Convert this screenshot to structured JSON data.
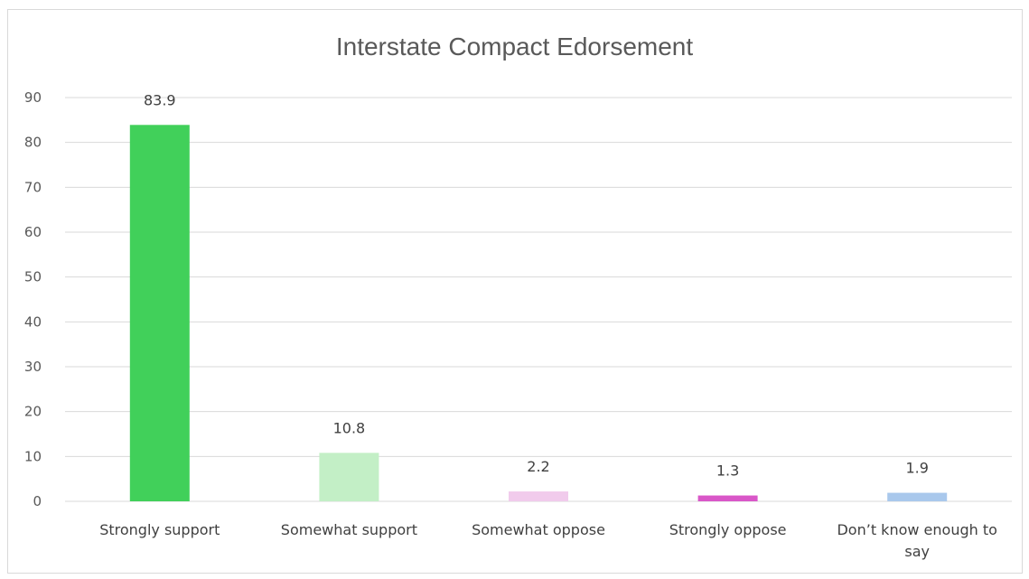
{
  "chart_data": {
    "type": "bar",
    "title": "Interstate Compact Edorsement",
    "xlabel": "",
    "ylabel": "",
    "ylim": [
      0,
      90
    ],
    "yticks": [
      0,
      10,
      20,
      30,
      40,
      50,
      60,
      70,
      80,
      90
    ],
    "grid": true,
    "legend": "none",
    "categories": [
      [
        "Strongly support"
      ],
      [
        "Somewhat support"
      ],
      [
        "Somewhat oppose"
      ],
      [
        "Strongly oppose"
      ],
      [
        "Don’t know enough to",
        "say"
      ]
    ],
    "values": [
      83.9,
      10.8,
      2.2,
      1.3,
      1.9
    ],
    "data_labels": [
      "83.9",
      "10.8",
      "2.2",
      "1.3",
      "1.9"
    ],
    "colors": [
      "#41d05a",
      "#c3efc6",
      "#f1cbec",
      "#d957c8",
      "#a9c8ec"
    ]
  }
}
